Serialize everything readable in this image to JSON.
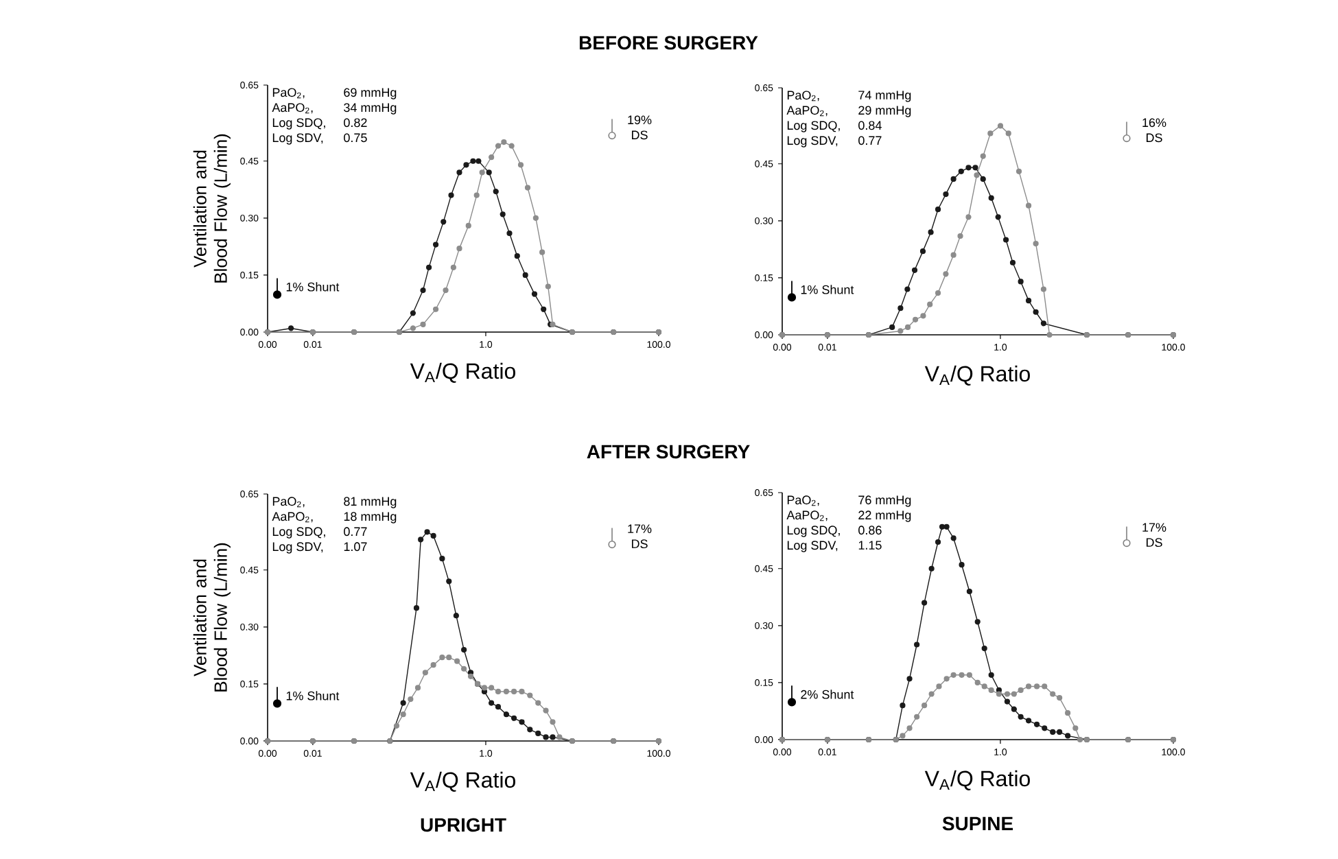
{
  "chart_data": [
    {
      "type": "line",
      "title": "BEFORE SURGERY",
      "xlabel": "V$_{A}$/Q Ratio",
      "ylabel": "Ventilation and Blood Flow (L/min)",
      "log": "x",
      "marker": "circle",
      "annotations": [
        "PaO$_{2}$,",
        "69 mmHg",
        "AaPO$_{2}$,",
        "34 mmHg",
        "Log SDQ,",
        "0.82",
        "Log SDV,",
        "0.75",
        "1% Shunt",
        "19% DS"
      ],
      "xlim": [
        0.003,
        100
      ],
      "ylim": [
        0,
        0.65
      ],
      "xticks": [
        {
          "value": 0.003,
          "label": "0.00"
        },
        {
          "value": 0.01,
          "label": "0.01"
        },
        {
          "value": 1,
          "label": "1.0"
        },
        {
          "value": 100,
          "label": "100.0"
        }
      ],
      "yticks": [
        {
          "value": 0,
          "label": "0.00"
        },
        {
          "value": 0.15,
          "label": "0.15"
        },
        {
          "value": 0.3,
          "label": "0.30"
        },
        {
          "value": 0.45,
          "label": "0.45"
        },
        {
          "value": 0.65,
          "label": "0.65"
        }
      ],
      "series": [
        {
          "color": "#1a1a1a",
          "x": [
            0.003,
            0.0056,
            0.01,
            0.03,
            0.1,
            0.144,
            0.188,
            0.22,
            0.264,
            0.324,
            0.398,
            0.495,
            0.594,
            0.713,
            0.824,
            1.09,
            1.31,
            1.57,
            1.88,
            2.31,
            2.87,
            3.66,
            4.66,
            5.59,
            10,
            30,
            100
          ],
          "values": [
            0,
            0.01,
            0,
            0,
            0,
            0.05,
            0.11,
            0.17,
            0.23,
            0.29,
            0.36,
            0.42,
            0.44,
            0.45,
            0.45,
            0.42,
            0.37,
            0.31,
            0.26,
            0.2,
            0.15,
            0.1,
            0.06,
            0.02,
            0,
            0,
            0
          ]
        },
        {
          "color": "#8c8c8c",
          "x": [
            0.003,
            0.01,
            0.03,
            0.1,
            0.144,
            0.188,
            0.264,
            0.344,
            0.423,
            0.495,
            0.631,
            0.785,
            0.908,
            1.16,
            1.39,
            1.62,
            1.99,
            2.54,
            3.05,
            3.79,
            4.49,
            5.26,
            5.94,
            10,
            30,
            100
          ],
          "values": [
            0,
            0,
            0,
            0,
            0.01,
            0.02,
            0.06,
            0.11,
            0.17,
            0.22,
            0.28,
            0.36,
            0.42,
            0.46,
            0.49,
            0.5,
            0.49,
            0.44,
            0.38,
            0.3,
            0.21,
            0.12,
            0.02,
            0,
            0,
            0
          ]
        }
      ]
    },
    {
      "type": "line",
      "xlabel": "V$_{A}$/Q Ratio",
      "log": "x",
      "marker": "circle",
      "annotations": [
        "PaO$_{2}$,",
        "74 mmHg",
        "AaPO$_{2}$,",
        "29 mmHg",
        "Log SDQ,",
        "0.84",
        "Log SDV,",
        "0.77",
        "1% Shunt",
        "16% DS"
      ],
      "xlim": [
        0.003,
        100
      ],
      "ylim": [
        0,
        0.65
      ],
      "xticks": [
        {
          "value": 0.003,
          "label": "0.00"
        },
        {
          "value": 0.01,
          "label": "0.01"
        },
        {
          "value": 1,
          "label": "1.0"
        },
        {
          "value": 100,
          "label": "100.0"
        }
      ],
      "yticks": [
        {
          "value": 0,
          "label": "0.00"
        },
        {
          "value": 0.15,
          "label": "0.15"
        },
        {
          "value": 0.3,
          "label": "0.30"
        },
        {
          "value": 0.45,
          "label": "0.45"
        },
        {
          "value": 0.65,
          "label": "0.65"
        }
      ],
      "series": [
        {
          "color": "#1a1a1a",
          "x": [
            0.003,
            0.01,
            0.03,
            0.056,
            0.07,
            0.084,
            0.102,
            0.127,
            0.157,
            0.19,
            0.234,
            0.287,
            0.352,
            0.428,
            0.514,
            0.631,
            0.785,
            0.941,
            1.16,
            1.39,
            1.72,
            2.12,
            2.57,
            3.16,
            10,
            30,
            100
          ],
          "values": [
            0,
            0,
            0,
            0.02,
            0.07,
            0.12,
            0.17,
            0.22,
            0.27,
            0.33,
            0.37,
            0.41,
            0.43,
            0.44,
            0.44,
            0.41,
            0.36,
            0.31,
            0.25,
            0.19,
            0.14,
            0.09,
            0.06,
            0.03,
            0,
            0,
            0
          ]
        },
        {
          "color": "#8c8c8c",
          "x": [
            0.003,
            0.01,
            0.03,
            0.07,
            0.085,
            0.104,
            0.128,
            0.153,
            0.19,
            0.234,
            0.287,
            0.344,
            0.428,
            0.533,
            0.631,
            0.766,
            1.0,
            1.24,
            1.64,
            2.12,
            2.57,
            3.16,
            3.7,
            10,
            30,
            100
          ],
          "values": [
            0,
            0,
            0,
            0.01,
            0.02,
            0.04,
            0.05,
            0.08,
            0.11,
            0.16,
            0.21,
            0.26,
            0.31,
            0.42,
            0.47,
            0.53,
            0.55,
            0.53,
            0.43,
            0.34,
            0.24,
            0.12,
            0,
            0,
            0,
            0
          ]
        }
      ]
    },
    {
      "type": "line",
      "title": "AFTER SURGERY",
      "subtitle": "UPRIGHT",
      "xlabel": "V$_{A}$/Q Ratio",
      "ylabel": "Ventilation and Blood Flow (L/min)",
      "log": "x",
      "marker": "circle",
      "annotations": [
        "PaO$_{2}$,",
        "81 mmHg",
        "AaPO$_{2}$,",
        "18 mmHg",
        "Log SDQ,",
        "0.77",
        "Log SDV,",
        "1.07",
        "1% Shunt",
        "17% DS"
      ],
      "xlim": [
        0.003,
        100
      ],
      "ylim": [
        0,
        0.65
      ],
      "xticks": [
        {
          "value": 0.003,
          "label": "0.00"
        },
        {
          "value": 0.01,
          "label": "0.01"
        },
        {
          "value": 1,
          "label": "1.0"
        },
        {
          "value": 100,
          "label": "100.0"
        }
      ],
      "yticks": [
        {
          "value": 0,
          "label": "0.00"
        },
        {
          "value": 0.15,
          "label": "0.15"
        },
        {
          "value": 0.3,
          "label": "0.30"
        },
        {
          "value": 0.45,
          "label": "0.45"
        },
        {
          "value": 0.65,
          "label": "0.65"
        }
      ],
      "series": [
        {
          "color": "#1a1a1a",
          "x": [
            0.003,
            0.01,
            0.03,
            0.078,
            0.111,
            0.158,
            0.177,
            0.21,
            0.248,
            0.313,
            0.375,
            0.455,
            0.559,
            0.67,
            0.804,
            0.964,
            1.16,
            1.39,
            1.73,
            2.12,
            2.61,
            3.24,
            4.03,
            4.95,
            5.94,
            10,
            30,
            100
          ],
          "values": [
            0,
            0,
            0,
            0,
            0.1,
            0.35,
            0.53,
            0.55,
            0.54,
            0.48,
            0.42,
            0.33,
            0.24,
            0.18,
            0.15,
            0.13,
            0.1,
            0.09,
            0.07,
            0.06,
            0.05,
            0.03,
            0.02,
            0.01,
            0.01,
            0,
            0,
            0
          ]
        },
        {
          "color": "#8c8c8c",
          "x": [
            0.003,
            0.01,
            0.03,
            0.078,
            0.093,
            0.111,
            0.135,
            0.164,
            0.2,
            0.248,
            0.313,
            0.375,
            0.466,
            0.559,
            0.67,
            0.804,
            0.964,
            1.16,
            1.39,
            1.73,
            2.12,
            2.61,
            3.24,
            4.03,
            4.95,
            5.94,
            7.12,
            10,
            30,
            100
          ],
          "values": [
            0,
            0,
            0,
            0,
            0.04,
            0.07,
            0.11,
            0.14,
            0.18,
            0.2,
            0.22,
            0.22,
            0.21,
            0.19,
            0.17,
            0.15,
            0.14,
            0.14,
            0.13,
            0.13,
            0.13,
            0.13,
            0.12,
            0.1,
            0.08,
            0.05,
            0.01,
            0,
            0,
            0
          ]
        }
      ]
    },
    {
      "type": "line",
      "subtitle": "SUPINE",
      "xlabel": "V$_{A}$/Q Ratio",
      "log": "x",
      "marker": "circle",
      "annotations": [
        "PaO$_{2}$,",
        "76 mmHg",
        "AaPO$_{2}$,",
        "22 mmHg",
        "Log SDQ,",
        "0.86",
        "Log SDV,",
        "1.15",
        "2% Shunt",
        "17% DS"
      ],
      "xlim": [
        0.003,
        100
      ],
      "ylim": [
        0,
        0.65
      ],
      "xticks": [
        {
          "value": 0.003,
          "label": "0.00"
        },
        {
          "value": 0.01,
          "label": "0.01"
        },
        {
          "value": 1,
          "label": "1.0"
        },
        {
          "value": 100,
          "label": "100.0"
        }
      ],
      "yticks": [
        {
          "value": 0,
          "label": "0.00"
        },
        {
          "value": 0.15,
          "label": "0.15"
        },
        {
          "value": 0.3,
          "label": "0.30"
        },
        {
          "value": 0.45,
          "label": "0.45"
        },
        {
          "value": 0.65,
          "label": "0.65"
        }
      ],
      "series": [
        {
          "color": "#1a1a1a",
          "x": [
            0.003,
            0.01,
            0.03,
            0.062,
            0.074,
            0.089,
            0.108,
            0.132,
            0.16,
            0.19,
            0.212,
            0.239,
            0.287,
            0.357,
            0.439,
            0.545,
            0.654,
            0.785,
            0.964,
            1.2,
            1.44,
            1.72,
            2.12,
            2.64,
            3.24,
            4.03,
            4.83,
            6.01,
            10,
            30,
            100
          ],
          "values": [
            0,
            0,
            0,
            0,
            0.09,
            0.16,
            0.25,
            0.36,
            0.45,
            0.52,
            0.56,
            0.56,
            0.53,
            0.46,
            0.39,
            0.31,
            0.24,
            0.17,
            0.13,
            0.1,
            0.08,
            0.06,
            0.05,
            0.04,
            0.03,
            0.02,
            0.02,
            0.01,
            0,
            0,
            0
          ]
        },
        {
          "color": "#8c8c8c",
          "x": [
            0.003,
            0.01,
            0.03,
            0.062,
            0.074,
            0.089,
            0.108,
            0.132,
            0.16,
            0.195,
            0.239,
            0.287,
            0.357,
            0.439,
            0.545,
            0.654,
            0.785,
            0.964,
            1.2,
            1.44,
            1.72,
            2.12,
            2.64,
            3.24,
            4.03,
            4.83,
            6.01,
            7.38,
            8.34,
            10,
            30,
            100
          ],
          "values": [
            0,
            0,
            0,
            0,
            0.01,
            0.03,
            0.06,
            0.09,
            0.12,
            0.14,
            0.16,
            0.17,
            0.17,
            0.17,
            0.15,
            0.14,
            0.13,
            0.12,
            0.12,
            0.12,
            0.13,
            0.14,
            0.14,
            0.14,
            0.12,
            0.11,
            0.07,
            0.03,
            0,
            0,
            0,
            0
          ]
        }
      ]
    }
  ]
}
